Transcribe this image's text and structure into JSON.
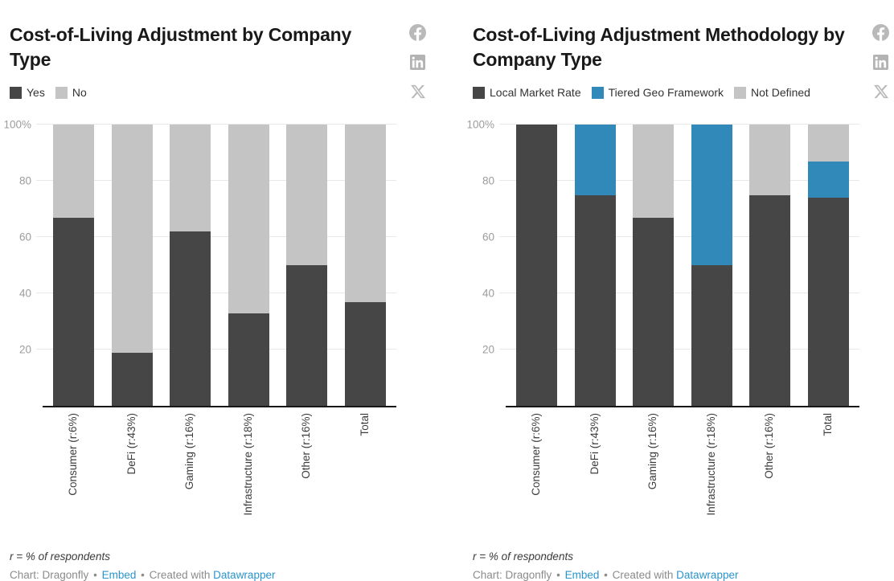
{
  "colors": {
    "dark": "#464646",
    "blue": "#3189ba",
    "light_gray": "#c4c4c4",
    "link_blue": "#2a94cc",
    "icon_gray": "#b9b9b9",
    "gridline": "#e8e8e8"
  },
  "social": {
    "facebook_label": "facebook-share",
    "linkedin_label": "linkedin-share",
    "x_label": "x-share"
  },
  "footer": {
    "note": "r = % of respondents",
    "byline": {
      "prefix": "Chart: Dragonfly",
      "sep1": "•",
      "embed": "Embed",
      "sep2": "•",
      "created": "Created with",
      "tool": "Datawrapper"
    }
  },
  "chart_data": [
    {
      "type": "bar",
      "stacked": true,
      "unit": "%",
      "title": "Cost-of-Living Adjustment by Company Type",
      "categories": [
        "Consumer (r:6%)",
        "DeFi (r:43%)",
        "Gaming (r:16%)",
        "Infrastructure (r:18%)",
        "Other (r:16%)",
        "Total"
      ],
      "series": [
        {
          "name": "Yes",
          "color": "#464646",
          "values": [
            67,
            19,
            62,
            33,
            50,
            37
          ]
        },
        {
          "name": "No",
          "color": "#c4c4c4",
          "values": [
            33,
            81,
            38,
            67,
            50,
            63
          ]
        }
      ],
      "ylim": [
        0,
        100
      ],
      "y_ticks": [
        {
          "value": 100,
          "label": "100%"
        },
        {
          "value": 80,
          "label": "80"
        },
        {
          "value": 60,
          "label": "60"
        },
        {
          "value": 40,
          "label": "40"
        },
        {
          "value": 20,
          "label": "20"
        }
      ],
      "grid": true,
      "legend_position": "top"
    },
    {
      "type": "bar",
      "stacked": true,
      "unit": "%",
      "title": "Cost-of-Living Adjustment Methodology by Company Type",
      "categories": [
        "Consumer (r:6%)",
        "DeFi (r:43%)",
        "Gaming (r:16%)",
        "Infrastructure (r:18%)",
        "Other (r:16%)",
        "Total"
      ],
      "series": [
        {
          "name": "Local Market Rate",
          "color": "#464646",
          "values": [
            100,
            75,
            67,
            50,
            75,
            74
          ]
        },
        {
          "name": "Tiered Geo Framework",
          "color": "#3189ba",
          "values": [
            0,
            25,
            0,
            50,
            0,
            13
          ]
        },
        {
          "name": "Not Defined",
          "color": "#c4c4c4",
          "values": [
            0,
            0,
            33,
            0,
            25,
            13
          ]
        }
      ],
      "ylim": [
        0,
        100
      ],
      "y_ticks": [
        {
          "value": 100,
          "label": "100%"
        },
        {
          "value": 80,
          "label": "80"
        },
        {
          "value": 60,
          "label": "60"
        },
        {
          "value": 40,
          "label": "40"
        },
        {
          "value": 20,
          "label": "20"
        }
      ],
      "grid": true,
      "legend_position": "top"
    }
  ]
}
